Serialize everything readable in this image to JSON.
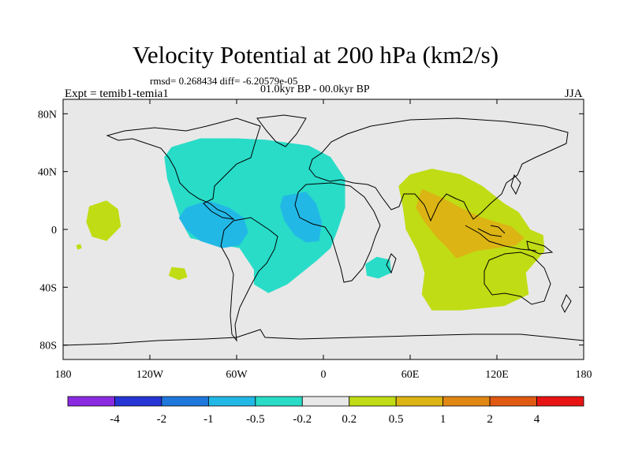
{
  "header": {
    "title": "Velocity Potential at 200 hPa (km2/s)",
    "stats": "rmsd= 0.268434 diff= -6.20579e-05",
    "period": "01.0kyr BP - 00.0kyr BP",
    "experiment": "Expt = temib1-temia1",
    "season": "JJA"
  },
  "chart_data": {
    "type": "heatmap",
    "title": "Velocity Potential at 200 hPa (km2/s)",
    "xlabel": "",
    "ylabel": "",
    "xlim": [
      -180,
      180
    ],
    "ylim": [
      -90,
      90
    ],
    "x_ticks": [
      {
        "value": -180,
        "label": "180"
      },
      {
        "value": -120,
        "label": "120W"
      },
      {
        "value": -60,
        "label": "60W"
      },
      {
        "value": 0,
        "label": "0"
      },
      {
        "value": 60,
        "label": "60E"
      },
      {
        "value": 120,
        "label": "120E"
      },
      {
        "value": 180,
        "label": "180"
      }
    ],
    "y_ticks": [
      {
        "value": 80,
        "label": "80N"
      },
      {
        "value": 40,
        "label": "40N"
      },
      {
        "value": 0,
        "label": "0"
      },
      {
        "value": -40,
        "label": "40S"
      },
      {
        "value": -80,
        "label": "80S"
      }
    ],
    "colorbar": {
      "labels": [
        "-4",
        "-2",
        "-1",
        "-0.5",
        "-0.2",
        "0.2",
        "0.5",
        "1",
        "2",
        "4"
      ],
      "colors": [
        "#8a2be2",
        "#2535d6",
        "#1e78dc",
        "#22b8e6",
        "#28dcc8",
        "#e8e8e8",
        "#c0dc14",
        "#dcb414",
        "#e08714",
        "#e05a14",
        "#e81414"
      ]
    },
    "regions": [
      {
        "name": "atlantic-americas-negative",
        "level": "-0.5 to -0.2",
        "color": "#28dcc8",
        "ring": [
          [
            -105,
            57
          ],
          [
            -85,
            63
          ],
          [
            -60,
            63
          ],
          [
            -40,
            62
          ],
          [
            -25,
            60
          ],
          [
            -10,
            58
          ],
          [
            5,
            50
          ],
          [
            15,
            35
          ],
          [
            15,
            15
          ],
          [
            10,
            0
          ],
          [
            5,
            -13
          ],
          [
            -5,
            -22
          ],
          [
            -15,
            -30
          ],
          [
            -25,
            -38
          ],
          [
            -38,
            -44
          ],
          [
            -48,
            -38
          ],
          [
            -48,
            -28
          ],
          [
            -58,
            -13
          ],
          [
            -75,
            -10
          ],
          [
            -92,
            -6
          ],
          [
            -98,
            5
          ],
          [
            -103,
            20
          ],
          [
            -108,
            35
          ],
          [
            -110,
            50
          ]
        ]
      },
      {
        "name": "tropical-america-core",
        "level": "-1 to -0.5",
        "color": "#22b8e6",
        "ring": [
          [
            -95,
            15
          ],
          [
            -80,
            20
          ],
          [
            -65,
            15
          ],
          [
            -55,
            8
          ],
          [
            -52,
            -2
          ],
          [
            -58,
            -11
          ],
          [
            -70,
            -13
          ],
          [
            -85,
            -8
          ],
          [
            -95,
            0
          ],
          [
            -100,
            8
          ]
        ]
      },
      {
        "name": "west-africa-core",
        "level": "-1 to -0.5",
        "color": "#22b8e6",
        "ring": [
          [
            -28,
            23
          ],
          [
            -12,
            26
          ],
          [
            -5,
            18
          ],
          [
            -1,
            5
          ],
          [
            -3,
            -8
          ],
          [
            -12,
            -9
          ],
          [
            -20,
            -4
          ],
          [
            -27,
            6
          ],
          [
            -30,
            16
          ]
        ]
      },
      {
        "name": "south-indian-negative",
        "level": "-0.5 to -0.2",
        "color": "#28dcc8",
        "ring": [
          [
            29,
            -24
          ],
          [
            37,
            -19
          ],
          [
            46,
            -21
          ],
          [
            47,
            -30
          ],
          [
            38,
            -34
          ],
          [
            30,
            -32
          ]
        ]
      },
      {
        "name": "north-pacific-positive",
        "level": "0.2 to 0.5",
        "color": "#c0dc14",
        "ring": [
          [
            -162,
            16
          ],
          [
            -150,
            20
          ],
          [
            -142,
            14
          ],
          [
            -140,
            2
          ],
          [
            -150,
            -8
          ],
          [
            -160,
            -5
          ],
          [
            -164,
            5
          ]
        ]
      },
      {
        "name": "south-pacific-small",
        "level": "0.2 to 0.5",
        "color": "#c0dc14",
        "ring": [
          [
            -105,
            -26
          ],
          [
            -96,
            -27
          ],
          [
            -94,
            -33
          ],
          [
            -100,
            -35
          ],
          [
            -107,
            -32
          ]
        ]
      },
      {
        "name": "tiny-pacific-dot",
        "level": "0.2 to 0.5",
        "color": "#c0dc14",
        "ring": [
          [
            -171,
            -11
          ],
          [
            -168,
            -10
          ],
          [
            -167,
            -13
          ],
          [
            -170,
            -14
          ]
        ]
      },
      {
        "name": "indo-pacific-positive",
        "level": "0.2 to 0.5",
        "color": "#c0dc14",
        "ring": [
          [
            60,
            38
          ],
          [
            75,
            42
          ],
          [
            95,
            38
          ],
          [
            110,
            30
          ],
          [
            125,
            18
          ],
          [
            135,
            12
          ],
          [
            143,
            0
          ],
          [
            152,
            -4
          ],
          [
            153,
            -15
          ],
          [
            140,
            -30
          ],
          [
            142,
            -45
          ],
          [
            125,
            -53
          ],
          [
            95,
            -56
          ],
          [
            75,
            -56
          ],
          [
            68,
            -45
          ],
          [
            70,
            -30
          ],
          [
            65,
            -15
          ],
          [
            57,
            0
          ],
          [
            55,
            15
          ],
          [
            52,
            30
          ]
        ]
      },
      {
        "name": "indo-pacific-core",
        "level": "0.5 to 1",
        "color": "#dcb414",
        "ring": [
          [
            68,
            28
          ],
          [
            82,
            22
          ],
          [
            95,
            15
          ],
          [
            110,
            8
          ],
          [
            130,
            2
          ],
          [
            139,
            -6
          ],
          [
            133,
            -11
          ],
          [
            120,
            -13
          ],
          [
            105,
            -15
          ],
          [
            92,
            -20
          ],
          [
            85,
            -12
          ],
          [
            78,
            -5
          ],
          [
            70,
            5
          ],
          [
            64,
            15
          ]
        ]
      }
    ]
  }
}
